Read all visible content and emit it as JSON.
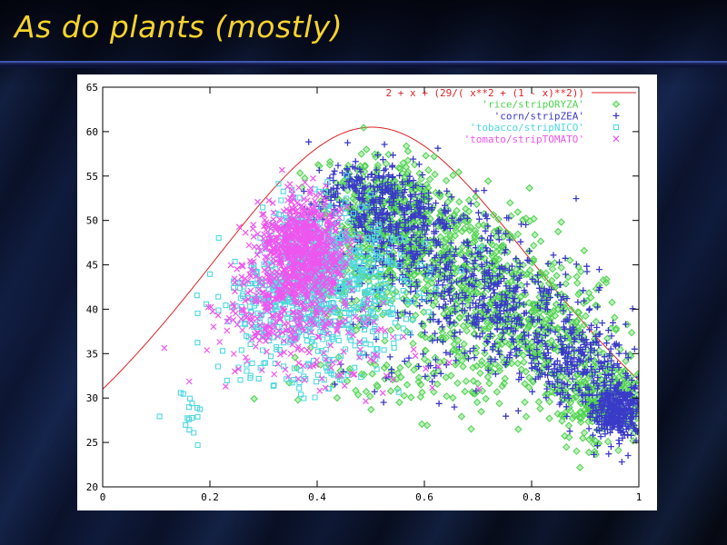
{
  "slide": {
    "title": "As do plants (mostly)",
    "title_color": "#f6d32d",
    "background_base": "#0a1128",
    "separator_color": "#3e56ac"
  },
  "chart_data": {
    "type": "scatter",
    "title": "",
    "xlabel": "",
    "ylabel": "",
    "xlim": [
      0,
      1
    ],
    "ylim": [
      20,
      65
    ],
    "grid": false,
    "legend_position": "top-right",
    "axis_color": "#000000",
    "x_tick_labels": [
      "0",
      "0.2",
      "0.4",
      "0.6",
      "0.8",
      "1"
    ],
    "x_tick_values": [
      0,
      0.2,
      0.4,
      0.6,
      0.8,
      1
    ],
    "y_tick_labels": [
      "20",
      "25",
      "30",
      "35",
      "40",
      "45",
      "50",
      "55",
      "60",
      "65"
    ],
    "y_tick_values": [
      20,
      25,
      30,
      35,
      40,
      45,
      50,
      55,
      60,
      65
    ],
    "curve": {
      "label": "2 + x + (29/( x**2 + (1 - x)**2))",
      "expression": "2 + x + 29/(x^2 + (1-x)^2)",
      "color": "#dd2226",
      "peak": [
        0.5,
        60.5
      ],
      "endpoints": [
        [
          0,
          31
        ],
        [
          1,
          32
        ]
      ]
    },
    "cluster_format": "[center_x, center_y, sigma_x, sigma_y, n_points] — gaussian clusters approximating the ~5000-point scatter",
    "series": [
      {
        "name": "'rice/stripORYZA'",
        "marker": "diamond",
        "color": "#4ed24e",
        "clusters": [
          [
            0.52,
            52.0,
            0.06,
            2.8,
            300
          ],
          [
            0.6,
            47.5,
            0.08,
            3.5,
            330
          ],
          [
            0.7,
            42.5,
            0.09,
            3.8,
            330
          ],
          [
            0.82,
            37.0,
            0.08,
            3.5,
            300
          ],
          [
            0.93,
            29.5,
            0.045,
            2.4,
            280
          ],
          [
            0.65,
            33.0,
            0.12,
            3.0,
            110
          ],
          [
            0.48,
            44.0,
            0.05,
            4.0,
            100
          ],
          [
            0.5,
            31.5,
            0.08,
            1.5,
            18
          ]
        ]
      },
      {
        "name": "'corn/stripZEA'",
        "marker": "plus",
        "color": "#3a3ac8",
        "clusters": [
          [
            0.5,
            52.5,
            0.05,
            2.2,
            260
          ],
          [
            0.56,
            48.5,
            0.07,
            3.0,
            240
          ],
          [
            0.66,
            44.0,
            0.08,
            3.2,
            220
          ],
          [
            0.78,
            39.0,
            0.07,
            3.0,
            220
          ],
          [
            0.88,
            33.5,
            0.05,
            2.5,
            230
          ],
          [
            0.96,
            28.5,
            0.025,
            1.7,
            330
          ],
          [
            0.6,
            36.0,
            0.1,
            3.0,
            60
          ]
        ]
      },
      {
        "name": "'tobacco/stripNICO'",
        "marker": "square",
        "color": "#4fd8e0",
        "clusters": [
          [
            0.4,
            45.5,
            0.045,
            3.2,
            420
          ],
          [
            0.36,
            41.5,
            0.06,
            3.0,
            200
          ],
          [
            0.3,
            39.5,
            0.05,
            2.5,
            80
          ],
          [
            0.46,
            38.5,
            0.055,
            2.5,
            110
          ],
          [
            0.35,
            33.5,
            0.085,
            1.8,
            55
          ],
          [
            0.52,
            43.5,
            0.05,
            2.8,
            70
          ],
          [
            0.162,
            28.6,
            0.018,
            1.6,
            16
          ]
        ]
      },
      {
        "name": "'tomato/stripTOMATO'",
        "marker": "cross",
        "color": "#ee55ee",
        "clusters": [
          [
            0.375,
            47.5,
            0.035,
            2.6,
            520
          ],
          [
            0.36,
            43.5,
            0.055,
            3.0,
            260
          ],
          [
            0.32,
            40.0,
            0.06,
            2.5,
            110
          ],
          [
            0.42,
            38.0,
            0.08,
            2.2,
            60
          ],
          [
            0.38,
            33.8,
            0.1,
            1.8,
            45
          ],
          [
            0.52,
            31.5,
            0.09,
            1.2,
            12
          ]
        ]
      }
    ]
  }
}
